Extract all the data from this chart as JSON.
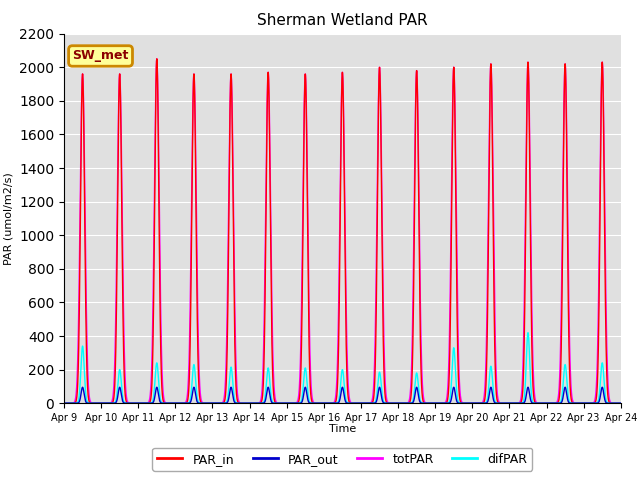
{
  "title": "Sherman Wetland PAR",
  "ylabel": "PAR (umol/m2/s)",
  "xlabel": "Time",
  "ylim": [
    0,
    2200
  ],
  "yticks": [
    0,
    200,
    400,
    600,
    800,
    1000,
    1200,
    1400,
    1600,
    1800,
    2000,
    2200
  ],
  "xtick_labels": [
    "Apr 9",
    "Apr 10",
    "Apr 11",
    "Apr 12",
    "Apr 13",
    "Apr 14",
    "Apr 15",
    "Apr 16",
    "Apr 17",
    "Apr 18",
    "Apr 19",
    "Apr 20",
    "Apr 21",
    "Apr 22",
    "Apr 23",
    "Apr 24"
  ],
  "color_PAR_in": "#ff0000",
  "color_PAR_out": "#0000cc",
  "color_totPAR": "#ff00ff",
  "color_difPAR": "#00ffff",
  "label_PAR_in": "PAR_in",
  "label_PAR_out": "PAR_out",
  "label_totPAR": "totPAR",
  "label_difPAR": "difPAR",
  "annotation_text": "SW_met",
  "annotation_bg": "#ffff99",
  "annotation_border": "#cc8800",
  "background_color": "#e0e0e0",
  "peak_heights_PAR_in": [
    1960,
    1960,
    2050,
    1960,
    1960,
    1970,
    1960,
    1970,
    2000,
    1980,
    2000,
    2020,
    2030,
    2020,
    2030
  ],
  "peak_heights_totPAR": [
    1960,
    1960,
    2050,
    1960,
    1960,
    1970,
    1960,
    1970,
    2000,
    1980,
    2000,
    2020,
    2030,
    2020,
    2030
  ],
  "peak_heights_PAR_out": [
    95,
    95,
    95,
    95,
    95,
    95,
    95,
    95,
    95,
    95,
    95,
    95,
    95,
    95,
    95
  ],
  "peak_heights_difPAR": [
    340,
    200,
    240,
    230,
    215,
    210,
    210,
    200,
    185,
    180,
    330,
    220,
    420,
    230,
    240
  ],
  "n_days": 15,
  "points_per_day": 288
}
